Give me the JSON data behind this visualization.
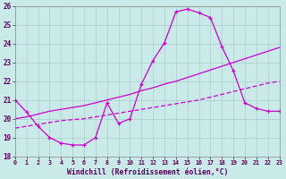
{
  "xlabel": "Windchill (Refroidissement éolien,°C)",
  "bg_color": "#caeaea",
  "line_color": "#cc00cc",
  "grid_color": "#aacccc",
  "xlim": [
    0,
    23
  ],
  "ylim": [
    18,
    26
  ],
  "yticks": [
    18,
    19,
    20,
    21,
    22,
    23,
    24,
    25,
    26
  ],
  "xticks": [
    0,
    1,
    2,
    3,
    4,
    5,
    6,
    7,
    8,
    9,
    10,
    11,
    12,
    13,
    14,
    15,
    16,
    17,
    18,
    19,
    20,
    21,
    22,
    23
  ],
  "line1_x": [
    0,
    1,
    2,
    3,
    4,
    5,
    6,
    7,
    8,
    9,
    10,
    11,
    12,
    13,
    14,
    15,
    16,
    17,
    18,
    19,
    20,
    21,
    22,
    23
  ],
  "line1_y": [
    21.0,
    20.35,
    19.6,
    19.0,
    18.7,
    18.6,
    18.6,
    19.0,
    20.85,
    19.75,
    20.0,
    21.85,
    23.1,
    24.05,
    25.7,
    25.85,
    25.65,
    25.4,
    23.85,
    22.55,
    20.85,
    20.55,
    20.4,
    20.4
  ],
  "line2_x": [
    0,
    1,
    2,
    3,
    4,
    5,
    6,
    7,
    8,
    9,
    10,
    11,
    12,
    13,
    14,
    15,
    16,
    17,
    18,
    19,
    20,
    21,
    22,
    23
  ],
  "line2_y": [
    19.5,
    19.6,
    19.7,
    19.8,
    19.9,
    19.95,
    20.0,
    20.1,
    20.2,
    20.3,
    20.4,
    20.5,
    20.6,
    20.7,
    20.8,
    20.9,
    21.0,
    21.15,
    21.3,
    21.45,
    21.6,
    21.75,
    21.9,
    22.0
  ],
  "line3_x": [
    0,
    1,
    2,
    3,
    4,
    5,
    6,
    7,
    8,
    9,
    10,
    11,
    12,
    13,
    14,
    15,
    16,
    17,
    18,
    19,
    20,
    21,
    22,
    23
  ],
  "line3_y": [
    20.0,
    20.1,
    20.25,
    20.4,
    20.5,
    20.6,
    20.7,
    20.85,
    21.0,
    21.15,
    21.3,
    21.5,
    21.65,
    21.85,
    22.0,
    22.2,
    22.4,
    22.6,
    22.8,
    23.0,
    23.2,
    23.4,
    23.6,
    23.8
  ]
}
